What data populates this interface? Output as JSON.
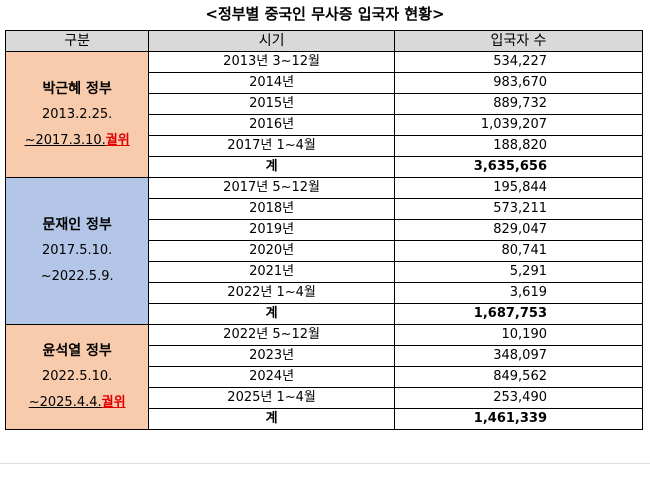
{
  "header": {
    "title": "<정부별 중국인 무사증 입국자 현황>"
  },
  "table": {
    "columns": [
      "구분",
      "시기",
      "입국자 수"
    ],
    "groups": [
      {
        "name": "박근혜 정부",
        "start": "2013.2.25.",
        "end": "~2017.3.10.",
        "note": "궐위",
        "color": "#f8cbad",
        "rows": [
          [
            "2013년 3~12월",
            "534,227"
          ],
          [
            "2014년",
            "983,670"
          ],
          [
            "2015년",
            "889,732"
          ],
          [
            "2016년",
            "1,039,207"
          ],
          [
            "2017년 1~4월",
            "188,820"
          ]
        ],
        "total": [
          "계",
          "3,635,656"
        ]
      },
      {
        "name": "문재인 정부",
        "start": "2017.5.10.",
        "end": "~2022.5.9.",
        "color": "#b4c6e7",
        "rows": [
          [
            "2017년 5~12월",
            "195,844"
          ],
          [
            "2018년",
            "573,211"
          ],
          [
            "2019년",
            "829,047"
          ],
          [
            "2020년",
            "80,741"
          ],
          [
            "2021년",
            "5,291"
          ],
          [
            "2022년 1~4월",
            "3,619"
          ]
        ],
        "total": [
          "계",
          "1,687,753"
        ]
      },
      {
        "name": "윤석열 정부",
        "start": "2022.5.10.",
        "end": "~2025.4.4.",
        "note": "궐위",
        "color": "#f8cbad",
        "rows": [
          [
            "2022년 5~12월",
            "10,190"
          ],
          [
            "2023년",
            "348,097"
          ],
          [
            "2024년",
            "849,562"
          ],
          [
            "2025년 1~4월",
            "253,490"
          ]
        ],
        "total": [
          "계",
          "1,461,339"
        ]
      }
    ]
  }
}
